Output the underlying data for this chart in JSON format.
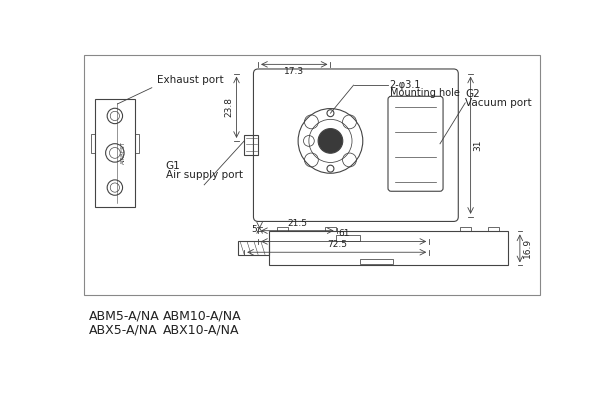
{
  "bg_color": "#ffffff",
  "line_color": "#444444",
  "dim_color": "#444444",
  "text_color": "#222222",
  "title_labels": [
    "ABM5-A/NA",
    "ABM10-A/NA",
    "ABX5-A/NA",
    "ABX10-A/NA"
  ],
  "annotations": {
    "exhaust_port": "Exhaust port",
    "mounting_hole_line1": "2-φ3.1",
    "mounting_hole_line2": "Mounting hole",
    "G2": "G2",
    "vacuum_port": "Vacuum port",
    "G1": "G1",
    "air_supply_port": "Air supply port",
    "dim_17_3": "17.3",
    "dim_23_8": "23.8",
    "dim_21_5": "21.5",
    "dim_61": "61",
    "dim_72_5": "72.5",
    "dim_31": "31",
    "dim_5": "5",
    "dim_16_9": "16.9"
  }
}
